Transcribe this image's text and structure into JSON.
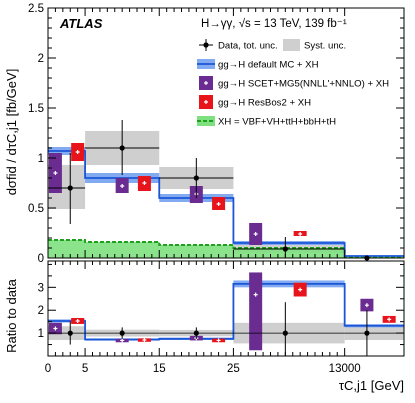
{
  "chart_data": {
    "type": "histogram",
    "experiment": "ATLAS",
    "header": "H→γγ, √s = 13 TeV, 139 fb⁻¹",
    "xlabel": "τC,j1 [GeV]",
    "ylabel_top": "dσfid / dτC,j1 [fb/GeV]",
    "ylabel_bottom": "Ratio to data",
    "x_ticks": [
      "0",
      "5",
      "15",
      "25",
      "13000"
    ],
    "x_tick_positions": [
      0,
      5,
      15,
      25,
      40
    ],
    "x_minor_ticks": [
      1,
      2,
      3,
      4,
      6,
      7,
      8,
      9,
      10,
      11,
      12,
      13,
      14,
      16,
      17,
      18,
      19,
      20,
      21,
      22,
      23,
      24,
      26,
      27,
      28,
      29,
      30,
      31,
      32,
      33,
      34,
      35,
      36,
      37,
      38,
      39
    ],
    "x_range": [
      0,
      40
    ],
    "top_ylim": [
      0,
      2.5
    ],
    "top_yticks": [
      "0",
      "0.5",
      "1",
      "1.5",
      "2",
      "2.5"
    ],
    "top_ytick_values": [
      0,
      0.5,
      1,
      1.5,
      2,
      2.5
    ],
    "bottom_ylim": [
      0,
      4.15
    ],
    "bottom_yticks": [
      "1",
      "2",
      "3"
    ],
    "bottom_ytick_values": [
      1,
      2,
      3
    ],
    "bins": [
      {
        "lo": 0,
        "hi": 5,
        "data": 0.7,
        "stat_lo": 0.34,
        "stat_hi": 1.05,
        "syst_lo": 0.49,
        "syst_hi": 0.93
      },
      {
        "lo": 5,
        "hi": 15,
        "data": 1.1,
        "stat_lo": 0.83,
        "stat_hi": 1.38,
        "syst_lo": 0.93,
        "syst_hi": 1.27
      },
      {
        "lo": 15,
        "hi": 25,
        "data": 0.8,
        "stat_lo": 0.6,
        "stat_hi": 1.0,
        "syst_lo": 0.69,
        "syst_hi": 0.91
      },
      {
        "lo": 25,
        "hi": 40,
        "data": 0.09,
        "stat_lo": 0.0,
        "stat_hi": 0.21,
        "syst_lo": 0.05,
        "syst_hi": 0.13
      },
      {
        "lo": 40,
        "hi": 48,
        "data": 0.0,
        "stat_lo": 0.0,
        "stat_hi": 0.0,
        "syst_lo": 0.0,
        "syst_hi": 0.0
      }
    ],
    "mc_default": [
      {
        "lo": 0,
        "hi": 5,
        "y": 1.07,
        "unc": 0.04
      },
      {
        "lo": 5,
        "hi": 15,
        "y": 0.8,
        "unc": 0.05
      },
      {
        "lo": 15,
        "hi": 25,
        "y": 0.6,
        "unc": 0.04
      },
      {
        "lo": 25,
        "hi": 40,
        "y": 0.15,
        "unc": 0.02
      },
      {
        "lo": 40,
        "hi": 48,
        "y": 0.02,
        "unc": 0.0
      }
    ],
    "xh": [
      {
        "lo": 0,
        "hi": 5,
        "y": 0.18
      },
      {
        "lo": 5,
        "hi": 15,
        "y": 0.16
      },
      {
        "lo": 15,
        "hi": 25,
        "y": 0.13
      },
      {
        "lo": 25,
        "hi": 40,
        "y": 0.1
      },
      {
        "lo": 40,
        "hi": 48,
        "y": 0.01
      }
    ],
    "scet": [
      {
        "x": 1.0,
        "y": 0.85,
        "lo": 0.65,
        "hi": 1.05
      },
      {
        "x": 10.0,
        "y": 0.72,
        "lo": 0.65,
        "hi": 0.8
      },
      {
        "x": 20.0,
        "y": 0.64,
        "lo": 0.55,
        "hi": 0.72
      },
      {
        "x": 28.0,
        "y": 0.24,
        "lo": 0.13,
        "hi": 0.35
      }
    ],
    "resbos": [
      {
        "x": 4.0,
        "y": 1.06,
        "lo": 0.97,
        "hi": 1.15
      },
      {
        "x": 13.0,
        "y": 0.75,
        "lo": 0.67,
        "hi": 0.82
      },
      {
        "x": 23.0,
        "y": 0.54,
        "lo": 0.48,
        "hi": 0.61
      },
      {
        "x": 34.0,
        "y": 0.24,
        "lo": 0.22,
        "hi": 0.27
      }
    ],
    "ratio_data": [
      {
        "x": 3.0,
        "y": 1.0,
        "lo": 0.5,
        "hi": 1.5
      },
      {
        "x": 10.0,
        "y": 1.0,
        "lo": 0.75,
        "hi": 1.25
      },
      {
        "x": 20.0,
        "y": 1.0,
        "lo": 0.75,
        "hi": 1.25
      },
      {
        "x": 32.0,
        "y": 1.0,
        "lo": 0.0,
        "hi": 2.35
      },
      {
        "x": 43.0,
        "y": 1.0,
        "lo": 0.0,
        "hi": 2.0
      }
    ],
    "ratio_syst": [
      {
        "lo": 0,
        "hi": 5,
        "ylo": 0.7,
        "yhi": 1.3
      },
      {
        "lo": 5,
        "hi": 15,
        "ylo": 0.85,
        "yhi": 1.15
      },
      {
        "lo": 15,
        "hi": 25,
        "ylo": 0.86,
        "yhi": 1.14
      },
      {
        "lo": 25,
        "hi": 40,
        "ylo": 0.55,
        "yhi": 1.45
      },
      {
        "lo": 40,
        "hi": 48,
        "ylo": 0.7,
        "yhi": 1.3
      }
    ],
    "ratio_mc_default": [
      {
        "lo": 0,
        "hi": 5,
        "y": 1.53,
        "unc": 0.07
      },
      {
        "lo": 5,
        "hi": 15,
        "y": 0.72,
        "unc": 0.05
      },
      {
        "lo": 15,
        "hi": 25,
        "y": 0.75,
        "unc": 0.05
      },
      {
        "lo": 25,
        "hi": 40,
        "y": 3.15,
        "unc": 0.15
      },
      {
        "lo": 40,
        "hi": 48,
        "y": 1.32,
        "unc": 0.07
      }
    ],
    "ratio_scet": [
      {
        "x": 1.0,
        "y": 1.2,
        "lo": 0.95,
        "hi": 1.45
      },
      {
        "x": 10.0,
        "y": 0.68,
        "lo": 0.6,
        "hi": 0.75
      },
      {
        "x": 20.0,
        "y": 0.78,
        "lo": 0.68,
        "hi": 0.88
      },
      {
        "x": 28.0,
        "y": 2.68,
        "lo": 0.25,
        "hi": 3.65
      },
      {
        "x": 43.0,
        "y": 2.22,
        "lo": 1.95,
        "hi": 2.5
      }
    ],
    "ratio_resbos": [
      {
        "x": 4.0,
        "y": 1.53,
        "lo": 1.4,
        "hi": 1.66
      },
      {
        "x": 13.0,
        "y": 0.7,
        "lo": 0.62,
        "hi": 0.77
      },
      {
        "x": 23.0,
        "y": 0.68,
        "lo": 0.6,
        "hi": 0.76
      },
      {
        "x": 34.0,
        "y": 2.9,
        "lo": 2.6,
        "hi": 3.2
      },
      {
        "x": 46.0,
        "y": 1.6,
        "lo": 1.45,
        "hi": 1.75
      }
    ],
    "legend": [
      {
        "key": "data",
        "label": "Data, tot. unc."
      },
      {
        "key": "syst",
        "label": "Syst. unc."
      },
      {
        "key": "mc",
        "label": "gg→H default MC + XH"
      },
      {
        "key": "scet",
        "label": "gg→H SCET+MG5(NNLL'+NNLO) + XH"
      },
      {
        "key": "resbos",
        "label": "gg→H ResBos2 + XH"
      },
      {
        "key": "xh",
        "label": "XH = VBF+VH+ttH+bbH+tH"
      }
    ],
    "colors": {
      "mc_line": "#1a55d6",
      "mc_band": "#82aaf0",
      "scet": "#6a2c91",
      "resbos": "#e8141b",
      "xh_fill": "#7ee07e",
      "xh_line": "#1fa01f",
      "syst": "#cfcfcf",
      "data": "#000000"
    }
  }
}
